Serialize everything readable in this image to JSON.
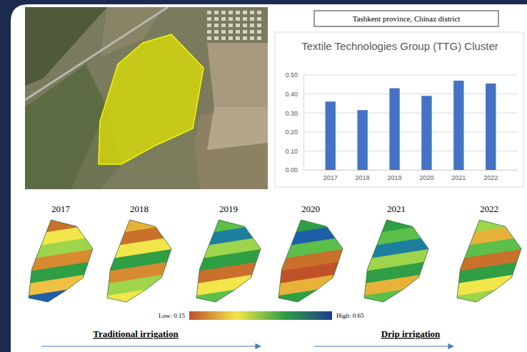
{
  "header": {
    "location": "Tashkent province, Chinaz district"
  },
  "chart_data": {
    "type": "bar",
    "title": "Textile Technologies Group (TTG) Cluster",
    "categories": [
      "2017",
      "2018",
      "2019",
      "2020",
      "2021",
      "2022"
    ],
    "values": [
      0.36,
      0.315,
      0.43,
      0.39,
      0.47,
      0.455
    ],
    "color": "#4472c4",
    "ylim": [
      0,
      0.5
    ],
    "yticks": [
      {
        "value": 0,
        "label": "0.00"
      },
      {
        "value": 0.1,
        "label": "0.10"
      },
      {
        "value": 0.2,
        "label": "0.20"
      },
      {
        "value": 0.3,
        "label": "0.30"
      },
      {
        "value": 0.4,
        "label": "0.40"
      },
      {
        "value": 0.5,
        "label": "0.50"
      }
    ],
    "grid": true
  },
  "maps": {
    "years": [
      "2017",
      "2018",
      "2019",
      "2020",
      "2021",
      "2022"
    ],
    "colorbar": {
      "range": [
        0.15,
        0.65
      ],
      "labels": [
        "Low: 0.15",
        "High: 0.65"
      ]
    }
  },
  "annotations": {
    "traditional": "Traditional irrigation",
    "drip": "Drip irrigation"
  }
}
